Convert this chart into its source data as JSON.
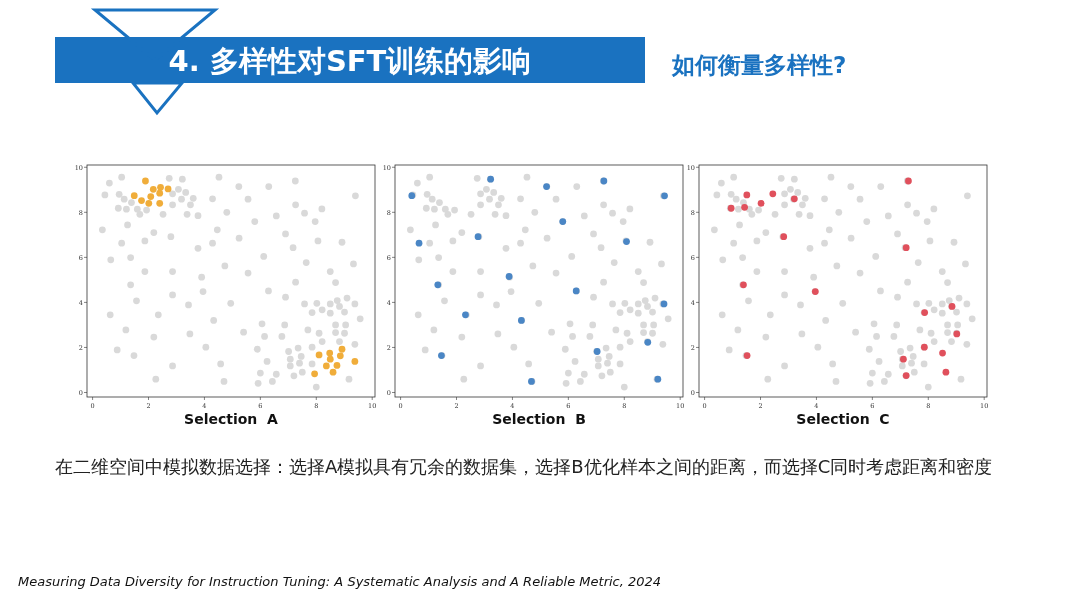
{
  "chart_data": [
    {
      "type": "scatter",
      "title": "4. 多样性对SFT训练的影响",
      "annotations": [
        "在二维空间中模拟数据选择：选择A模拟具有冗余的数据集，选择B优化样本之间的距离，而选择C同时考虑距离和密度",
        "Measuring Data Diversity for Instruction Tuning: A Systematic Analysis and A Reliable Metric, 2024"
      ],
      "xlabel": "Selection  A",
      "xlim": [
        -0.2,
        10.1
      ],
      "ylim": [
        -0.2,
        10.1
      ],
      "xticks": [
        0,
        2,
        4,
        6,
        8,
        10
      ],
      "yticks": [
        0,
        2,
        4,
        6,
        8,
        10
      ],
      "marker": "circle",
      "series": [
        {
          "color": "#d9d9d9",
          "x": [
            0.44,
            0.6,
            1.04,
            0.95,
            1.13,
            0.92,
            1.21,
            1.39,
            1.6,
            1.69,
            1.93,
            1.25,
            0.35,
            1.04,
            0.65,
            1.36,
            1.36,
            1.57,
            1.87,
            2.19,
            1.87,
            0.63,
            1.19,
            0.88,
            1.48,
            2.19,
            2.35,
            2.26,
            2.74,
            3.07,
            3.21,
            2.86,
            2.86,
            3.18,
            3.33,
            2.52,
            3.5,
            3.6,
            3.38,
            3.77,
            2.8,
            2.86,
            2.86,
            3.43,
            3.48,
            2.86,
            3.77,
            3.9,
            3.95,
            4.05,
            4.29,
            4.29,
            4.33,
            4.46,
            4.52,
            4.58,
            4.7,
            4.73,
            4.8,
            4.94,
            5.23,
            5.24,
            5.4,
            5.56,
            5.56,
            5.8,
            5.89,
            6.0,
            5.92,
            6.06,
            6.12,
            6.15,
            6.24,
            6.3,
            6.29,
            6.43,
            6.57,
            6.57,
            6.77,
            6.87,
            6.9,
            6.9,
            7.01,
            7.07,
            7.07,
            7.17,
            7.2,
            7.25,
            7.26,
            7.26,
            7.35,
            7.4,
            7.46,
            7.5,
            7.58,
            7.58,
            7.64,
            7.7,
            7.85,
            7.85,
            7.85,
            7.96,
            8.0,
            8.06,
            8.02,
            8.1,
            8.21,
            8.21,
            8.2,
            8.5,
            8.5,
            8.5,
            8.69,
            8.69,
            8.69,
            8.75,
            8.83,
            8.83,
            8.92,
            9.01,
            9.05,
            9.01,
            9.1,
            9.17,
            9.33,
            9.38,
            9.38,
            9.4,
            9.57
          ],
          "values": [
            8.77,
            9.3,
            9.56,
            8.8,
            8.58,
            8.18,
            8.14,
            8.43,
            8.14,
            7.91,
            8.1,
            7.44,
            7.22,
            6.63,
            5.89,
            5.99,
            4.78,
            4.07,
            6.73,
            7.1,
            5.37,
            3.45,
            2.78,
            1.89,
            1.64,
            2.46,
            3.45,
            0.59,
            9.51,
            9.02,
            9.47,
            8.82,
            8.33,
            8.58,
            8.88,
            7.91,
            8.33,
            8.62,
            7.91,
            7.85,
            6.92,
            5.37,
            4.33,
            3.89,
            2.6,
            1.18,
            6.4,
            5.12,
            4.48,
            2.01,
            6.63,
            8.6,
            3.2,
            7.22,
            9.56,
            1.27,
            0.49,
            5.62,
            8.0,
            3.96,
            9.14,
            6.85,
            2.68,
            8.58,
            5.3,
            7.59,
            1.92,
            0.86,
            0.41,
            3.05,
            6.04,
            2.49,
            1.38,
            9.14,
            4.51,
            0.49,
            7.84,
            0.81,
            2.49,
            3.0,
            4.23,
            7.04,
            1.82,
            1.48,
            1.18,
            6.43,
            0.74,
            9.39,
            8.33,
            4.9,
            1.97,
            1.3,
            1.6,
            0.9,
            7.96,
            3.93,
            5.77,
            2.78,
            3.55,
            2.01,
            1.27,
            7.59,
            0.24,
            6.73,
            3.96,
            2.63,
            3.67,
            2.26,
            8.15,
            5.37,
            3.93,
            3.52,
            4.88,
            3.0,
            2.66,
            4.08,
            3.82,
            2.26,
            6.67,
            3.57,
            3.0,
            2.63,
            4.19,
            0.59,
            5.71,
            3.93,
            2.14,
            8.73,
            3.27
          ]
        },
        {
          "color": "#f0ad3a",
          "x": [
            1.89,
            1.49,
            1.75,
            2.01,
            2.08,
            2.17,
            2.43,
            2.4,
            2.4,
            2.7,
            8.1,
            7.94,
            8.48,
            8.5,
            8.36,
            8.6,
            8.74,
            8.86,
            8.92,
            9.38
          ],
          "values": [
            9.39,
            8.74,
            8.52,
            8.4,
            8.7,
            9.02,
            9.11,
            8.85,
            8.4,
            9.04,
            1.67,
            0.83,
            1.75,
            1.48,
            1.18,
            0.9,
            1.2,
            1.63,
            1.92,
            1.38
          ]
        }
      ]
    },
    {
      "type": "scatter",
      "xlabel": "Selection  B",
      "xlim": [
        -0.2,
        10.1
      ],
      "ylim": [
        -0.2,
        10.1
      ],
      "xticks": [
        0,
        2,
        4,
        6,
        8,
        10
      ],
      "yticks": [
        0,
        2,
        4,
        6,
        8,
        10
      ],
      "marker": "circle",
      "series": [
        {
          "color": "#d9d9d9",
          "x": [
            0.44,
            0.6,
            1.04,
            0.95,
            1.13,
            0.92,
            1.21,
            1.39,
            1.6,
            1.69,
            1.93,
            1.25,
            0.35,
            1.04,
            0.65,
            1.36,
            1.36,
            1.57,
            1.87,
            2.19,
            1.87,
            0.63,
            1.19,
            0.88,
            1.48,
            2.19,
            2.35,
            2.26,
            2.74,
            3.07,
            3.21,
            2.86,
            2.86,
            3.18,
            3.33,
            2.52,
            3.5,
            3.6,
            3.38,
            3.77,
            2.8,
            2.86,
            2.86,
            3.43,
            3.48,
            2.86,
            3.77,
            3.9,
            3.95,
            4.05,
            4.29,
            4.29,
            4.33,
            4.46,
            4.52,
            4.58,
            4.7,
            4.73,
            4.8,
            4.94,
            5.23,
            5.24,
            5.4,
            5.56,
            5.56,
            5.8,
            5.89,
            6.0,
            5.92,
            6.06,
            6.12,
            6.15,
            6.24,
            6.3,
            6.29,
            6.43,
            6.57,
            6.57,
            6.77,
            6.87,
            6.9,
            6.9,
            7.01,
            7.07,
            7.07,
            7.17,
            7.2,
            7.25,
            7.26,
            7.26,
            7.35,
            7.4,
            7.46,
            7.5,
            7.58,
            7.58,
            7.64,
            7.7,
            7.85,
            7.85,
            7.85,
            7.96,
            8.0,
            8.06,
            8.02,
            8.1,
            8.21,
            8.21,
            8.2,
            8.5,
            8.5,
            8.5,
            8.69,
            8.69,
            8.69,
            8.75,
            8.83,
            8.83,
            8.92,
            9.01,
            9.05,
            9.01,
            9.1,
            9.17,
            9.33,
            9.38,
            9.38,
            9.4,
            9.57
          ],
          "values": [
            8.77,
            9.3,
            9.56,
            8.8,
            8.58,
            8.18,
            8.14,
            8.43,
            8.14,
            7.91,
            8.1,
            7.44,
            7.22,
            6.63,
            5.89,
            5.99,
            4.78,
            4.07,
            6.73,
            7.1,
            5.37,
            3.45,
            2.78,
            1.89,
            1.64,
            2.46,
            3.45,
            0.59,
            9.51,
            9.02,
            9.47,
            8.82,
            8.33,
            8.58,
            8.88,
            7.91,
            8.33,
            8.62,
            7.91,
            7.85,
            6.92,
            5.37,
            4.33,
            3.89,
            2.6,
            1.18,
            6.4,
            5.12,
            4.48,
            2.01,
            6.63,
            8.6,
            3.2,
            7.22,
            9.56,
            1.27,
            0.49,
            5.62,
            8.0,
            3.96,
            9.14,
            6.85,
            2.68,
            8.58,
            5.3,
            7.59,
            1.92,
            0.86,
            0.41,
            3.05,
            6.04,
            2.49,
            1.38,
            9.14,
            4.51,
            0.49,
            7.84,
            0.81,
            2.49,
            3.0,
            4.23,
            7.04,
            1.82,
            1.48,
            1.18,
            6.43,
            0.74,
            9.39,
            8.33,
            4.9,
            1.97,
            1.3,
            1.6,
            0.9,
            7.96,
            3.93,
            5.77,
            2.78,
            3.55,
            2.01,
            1.27,
            7.59,
            0.24,
            6.73,
            3.96,
            2.63,
            3.67,
            2.26,
            8.15,
            5.37,
            3.93,
            3.52,
            4.88,
            3.0,
            2.66,
            4.08,
            3.82,
            2.26,
            6.67,
            3.57,
            3.0,
            2.63,
            4.19,
            0.59,
            5.71,
            3.93,
            2.14,
            8.73,
            3.27
          ]
        },
        {
          "color": "#4a86c5",
          "x": [
            0.4,
            0.66,
            1.33,
            1.46,
            2.32,
            2.77,
            3.22,
            3.88,
            4.32,
            4.68,
            5.22,
            5.8,
            6.28,
            7.03,
            7.27,
            8.08,
            8.84,
            9.2,
            9.42,
            9.44
          ],
          "values": [
            8.74,
            6.63,
            4.78,
            1.64,
            3.45,
            6.92,
            9.47,
            5.15,
            3.2,
            0.49,
            9.14,
            7.59,
            4.51,
            1.82,
            9.39,
            6.7,
            2.23,
            0.59,
            3.93,
            8.73
          ]
        }
      ]
    },
    {
      "type": "scatter",
      "subtitle": "如何衡量多样性?",
      "xlabel": "Selection  C",
      "xlim": [
        -0.2,
        10.1
      ],
      "ylim": [
        -0.2,
        10.1
      ],
      "xticks": [
        0,
        2,
        4,
        6,
        8,
        10
      ],
      "yticks": [
        0,
        2,
        4,
        6,
        8,
        10
      ],
      "marker": "circle",
      "series": [
        {
          "color": "#d9d9d9",
          "x": [
            0.44,
            0.6,
            1.04,
            0.95,
            1.13,
            0.92,
            1.21,
            1.39,
            1.6,
            1.69,
            1.93,
            1.25,
            0.35,
            1.04,
            0.65,
            1.36,
            1.36,
            1.57,
            1.87,
            2.19,
            1.87,
            0.63,
            1.19,
            0.88,
            1.48,
            2.19,
            2.35,
            2.26,
            2.74,
            3.07,
            3.21,
            2.86,
            2.86,
            3.18,
            3.33,
            2.52,
            3.5,
            3.6,
            3.38,
            3.77,
            2.8,
            2.86,
            2.86,
            3.43,
            3.48,
            2.86,
            3.77,
            3.9,
            3.95,
            4.05,
            4.29,
            4.29,
            4.33,
            4.46,
            4.52,
            4.58,
            4.7,
            4.73,
            4.8,
            4.94,
            5.23,
            5.24,
            5.4,
            5.56,
            5.56,
            5.8,
            5.89,
            6.0,
            5.92,
            6.06,
            6.12,
            6.15,
            6.24,
            6.3,
            6.29,
            6.43,
            6.57,
            6.57,
            6.77,
            6.87,
            6.9,
            6.9,
            7.01,
            7.07,
            7.07,
            7.17,
            7.2,
            7.25,
            7.26,
            7.26,
            7.35,
            7.4,
            7.46,
            7.5,
            7.58,
            7.58,
            7.64,
            7.7,
            7.85,
            7.85,
            7.85,
            7.96,
            8.0,
            8.06,
            8.02,
            8.1,
            8.21,
            8.21,
            8.2,
            8.5,
            8.5,
            8.5,
            8.69,
            8.69,
            8.69,
            8.75,
            8.83,
            8.83,
            8.92,
            9.01,
            9.05,
            9.01,
            9.1,
            9.17,
            9.33,
            9.38,
            9.38,
            9.4,
            9.57
          ],
          "values": [
            8.77,
            9.3,
            9.56,
            8.8,
            8.58,
            8.18,
            8.14,
            8.43,
            8.14,
            7.91,
            8.1,
            7.44,
            7.22,
            6.63,
            5.89,
            5.99,
            4.78,
            4.07,
            6.73,
            7.1,
            5.37,
            3.45,
            2.78,
            1.89,
            1.64,
            2.46,
            3.45,
            0.59,
            9.51,
            9.02,
            9.47,
            8.82,
            8.33,
            8.58,
            8.88,
            7.91,
            8.33,
            8.62,
            7.91,
            7.85,
            6.92,
            5.37,
            4.33,
            3.89,
            2.6,
            1.18,
            6.4,
            5.12,
            4.48,
            2.01,
            6.63,
            8.6,
            3.2,
            7.22,
            9.56,
            1.27,
            0.49,
            5.62,
            8.0,
            3.96,
            9.14,
            6.85,
            2.68,
            8.58,
            5.3,
            7.59,
            1.92,
            0.86,
            0.41,
            3.05,
            6.04,
            2.49,
            1.38,
            9.14,
            4.51,
            0.49,
            7.84,
            0.81,
            2.49,
            3.0,
            4.23,
            7.04,
            1.82,
            1.48,
            1.18,
            6.43,
            0.74,
            9.39,
            8.33,
            4.9,
            1.97,
            1.3,
            1.6,
            0.9,
            7.96,
            3.93,
            5.77,
            2.78,
            3.55,
            2.01,
            1.27,
            7.59,
            0.24,
            6.73,
            3.96,
            2.63,
            3.67,
            2.26,
            8.15,
            5.37,
            3.93,
            3.52,
            4.88,
            3.0,
            2.66,
            4.08,
            3.82,
            2.26,
            6.67,
            3.57,
            3.0,
            2.63,
            4.19,
            0.59,
            5.71,
            3.93,
            2.14,
            8.73,
            3.27
          ]
        },
        {
          "color": "#e0505c",
          "x": [
            0.95,
            1.43,
            1.51,
            2.02,
            2.44,
            2.83,
            3.21,
            1.39,
            1.52,
            3.96,
            7.29,
            7.21,
            7.87,
            8.85,
            9.02,
            7.86,
            8.51,
            7.11,
            7.21,
            8.63
          ],
          "values": [
            8.18,
            8.22,
            8.77,
            8.4,
            8.82,
            6.92,
            8.6,
            4.78,
            1.64,
            4.48,
            9.39,
            6.43,
            3.55,
            3.82,
            2.6,
            2.01,
            1.75,
            1.48,
            0.75,
            0.9
          ]
        }
      ]
    }
  ]
}
